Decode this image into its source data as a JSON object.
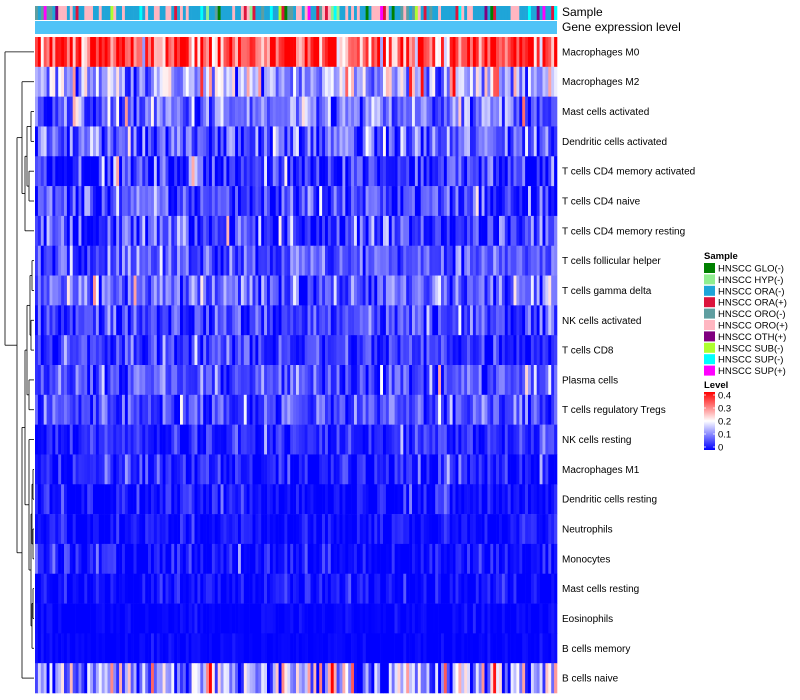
{
  "chart_data": {
    "type": "heatmap",
    "column_annotations": [
      {
        "name": "Sample"
      },
      {
        "name": "Gene expression level"
      }
    ],
    "rows": [
      {
        "label": "Macrophages M0",
        "mean": 0.33,
        "spread": 0.09
      },
      {
        "label": "Macrophages M2",
        "mean": 0.14,
        "spread": 0.07
      },
      {
        "label": "Mast cells activated",
        "mean": 0.08,
        "spread": 0.06
      },
      {
        "label": "Dendritic cells activated",
        "mean": 0.07,
        "spread": 0.06
      },
      {
        "label": "T cells CD4 memory activated",
        "mean": 0.04,
        "spread": 0.05
      },
      {
        "label": "T cells CD4 naive",
        "mean": 0.05,
        "spread": 0.05
      },
      {
        "label": "T cells CD4 memory resting",
        "mean": 0.04,
        "spread": 0.06
      },
      {
        "label": "T cells follicular helper",
        "mean": 0.07,
        "spread": 0.04
      },
      {
        "label": "T cells gamma delta",
        "mean": 0.07,
        "spread": 0.05
      },
      {
        "label": "NK cells activated",
        "mean": 0.05,
        "spread": 0.04
      },
      {
        "label": "T cells CD8",
        "mean": 0.04,
        "spread": 0.04
      },
      {
        "label": "Plasma cells",
        "mean": 0.06,
        "spread": 0.04
      },
      {
        "label": "T cells regulatory  Tregs",
        "mean": 0.06,
        "spread": 0.04
      },
      {
        "label": "NK cells resting",
        "mean": 0.03,
        "spread": 0.03
      },
      {
        "label": "Macrophages M1",
        "mean": 0.02,
        "spread": 0.03
      },
      {
        "label": "Dendritic cells resting",
        "mean": 0.01,
        "spread": 0.03
      },
      {
        "label": "Neutrophils",
        "mean": 0.01,
        "spread": 0.02
      },
      {
        "label": "Monocytes",
        "mean": 0.01,
        "spread": 0.03
      },
      {
        "label": "Mast cells resting",
        "mean": 0.01,
        "spread": 0.02
      },
      {
        "label": "Eosinophils",
        "mean": 0.0,
        "spread": 0.01
      },
      {
        "label": "B cells memory",
        "mean": 0.0,
        "spread": 0.01
      },
      {
        "label": "B cells naive",
        "mean": 0.12,
        "spread": 0.1
      }
    ],
    "n_samples": 180,
    "sample_legend": {
      "title": "Sample",
      "entries": [
        {
          "label": "HNSCC GLO(-)",
          "color": "#008000"
        },
        {
          "label": "HNSCC HYP(-)",
          "color": "#90EE90"
        },
        {
          "label": "HNSCC ORA(-)",
          "color": "#1FA5D8"
        },
        {
          "label": "HNSCC ORA(+)",
          "color": "#DC143C"
        },
        {
          "label": "HNSCC ORO(-)",
          "color": "#5F9EA0"
        },
        {
          "label": "HNSCC ORO(+)",
          "color": "#FFB6C1"
        },
        {
          "label": "HNSCC OTH(+)",
          "color": "#800080"
        },
        {
          "label": "HNSCC SUB(-)",
          "color": "#ADFF2F"
        },
        {
          "label": "HNSCC SUP(-)",
          "color": "#00FFFF"
        },
        {
          "label": "HNSCC SUP(+)",
          "color": "#FF00FF"
        }
      ]
    },
    "level_legend": {
      "title": "Level",
      "ticks": [
        "0.4",
        "0.3",
        "0.2",
        "0.1",
        "0"
      ],
      "range": [
        0,
        0.4
      ],
      "colors": [
        "#0000FF",
        "#FFFFFF",
        "#FF0000"
      ]
    },
    "gene_expression_color": "#4FC3F7",
    "dendrogram": "left"
  }
}
